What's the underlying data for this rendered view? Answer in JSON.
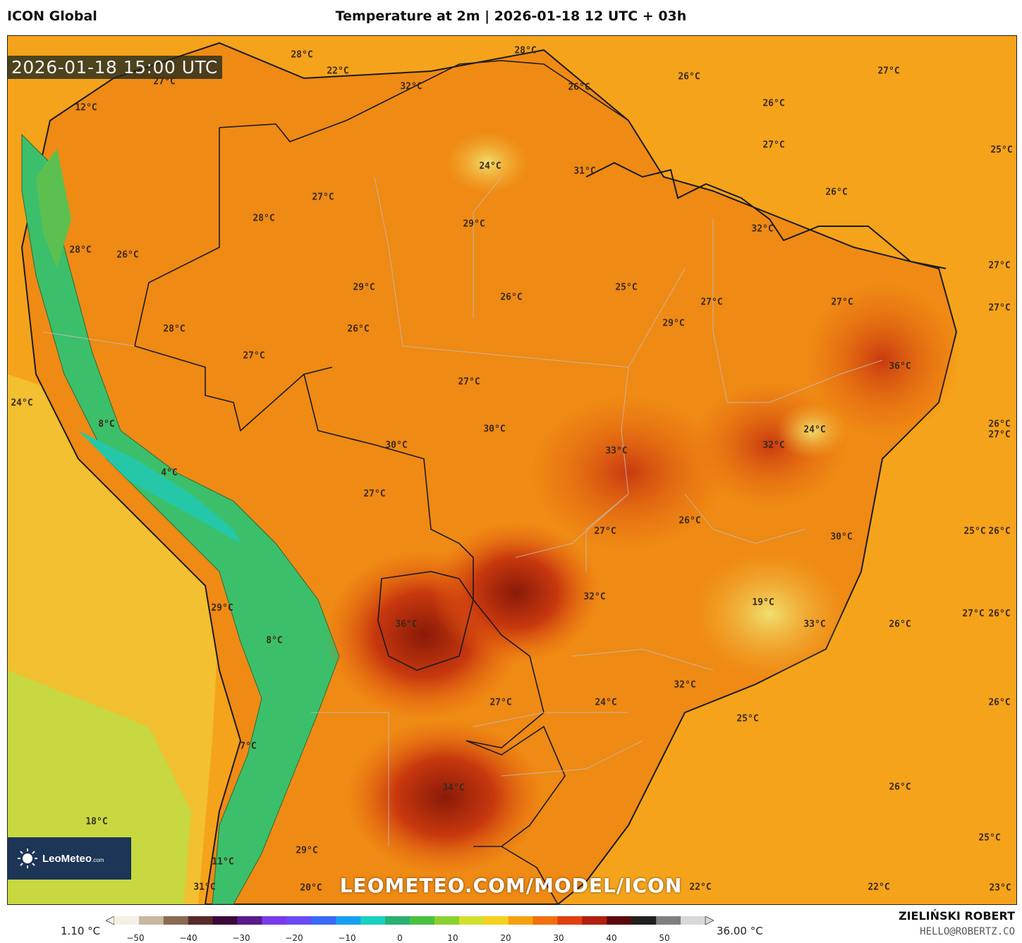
{
  "header": {
    "model": "ICON Global",
    "title": "Temperature at 2m | 2026-01-18 12 UTC + 03h"
  },
  "map": {
    "valid_time": "2026-01-18 15:00 UTC",
    "watermark": "LEOMETEO.COM/MODEL/ICON",
    "logo": {
      "name": "LeoMeteo",
      "suffix": ".com",
      "icon": "sun-icon"
    },
    "labels": [
      {
        "text": "28°C"
      },
      {
        "text": "22°C"
      },
      {
        "text": "27°C"
      },
      {
        "text": "32°C"
      },
      {
        "text": "28°C"
      },
      {
        "text": "26°C"
      },
      {
        "text": "26°C"
      },
      {
        "text": "27°C"
      },
      {
        "text": "12°C"
      },
      {
        "text": "26°C"
      },
      {
        "text": "27°C"
      },
      {
        "text": "24°C"
      },
      {
        "text": "31°C"
      },
      {
        "text": "25°C"
      },
      {
        "text": "27°C"
      },
      {
        "text": "26°C"
      },
      {
        "text": "28°C"
      },
      {
        "text": "29°C"
      },
      {
        "text": "32°C"
      },
      {
        "text": "28°C"
      },
      {
        "text": "26°C"
      },
      {
        "text": "27°C"
      },
      {
        "text": "29°C"
      },
      {
        "text": "26°C"
      },
      {
        "text": "25°C"
      },
      {
        "text": "27°C"
      },
      {
        "text": "27°C"
      },
      {
        "text": "27°C"
      },
      {
        "text": "28°C"
      },
      {
        "text": "26°C"
      },
      {
        "text": "29°C"
      },
      {
        "text": "27°C"
      },
      {
        "text": "36°C"
      },
      {
        "text": "27°C"
      },
      {
        "text": "24°C"
      },
      {
        "text": "30°C"
      },
      {
        "text": "33°C"
      },
      {
        "text": "24°C"
      },
      {
        "text": "32°C"
      },
      {
        "text": "26°C"
      },
      {
        "text": "27°C"
      },
      {
        "text": "8°C"
      },
      {
        "text": "30°C"
      },
      {
        "text": "4°C"
      },
      {
        "text": "27°C"
      },
      {
        "text": "27°C"
      },
      {
        "text": "26°C"
      },
      {
        "text": "25°C"
      },
      {
        "text": "26°C"
      },
      {
        "text": "30°C"
      },
      {
        "text": "32°C"
      },
      {
        "text": "19°C"
      },
      {
        "text": "29°C"
      },
      {
        "text": "36°C"
      },
      {
        "text": "33°C"
      },
      {
        "text": "26°C"
      },
      {
        "text": "27°C"
      },
      {
        "text": "26°C"
      },
      {
        "text": "8°C"
      },
      {
        "text": "32°C"
      },
      {
        "text": "27°C"
      },
      {
        "text": "24°C"
      },
      {
        "text": "26°C"
      },
      {
        "text": "25°C"
      },
      {
        "text": "7°C"
      },
      {
        "text": "34°C"
      },
      {
        "text": "26°C"
      },
      {
        "text": "18°C"
      },
      {
        "text": "25°C"
      },
      {
        "text": "29°C"
      },
      {
        "text": "11°C"
      },
      {
        "text": "31°C"
      },
      {
        "text": "20°C"
      },
      {
        "text": "22°C"
      },
      {
        "text": "22°C"
      },
      {
        "text": "23°C"
      }
    ]
  },
  "legend": {
    "min_label": "1.10 °C",
    "max_label": "36.00 °C",
    "ticks": [
      "−50",
      "−40",
      "−30",
      "−20",
      "−10",
      "0",
      "10",
      "20",
      "30",
      "40",
      "50"
    ],
    "colors": [
      "#f5f0e6",
      "#c8b8a0",
      "#8a6a50",
      "#5a2a2a",
      "#3a0a3a",
      "#5a1a8a",
      "#7a3aea",
      "#6a4af5",
      "#3a6af5",
      "#1aa0f0",
      "#1ad0c0",
      "#2ab070",
      "#4ac040",
      "#8ad030",
      "#d0e030",
      "#f5d020",
      "#f5a010",
      "#f07010",
      "#e04010",
      "#b02010",
      "#5a0a0a",
      "#202020",
      "#808080",
      "#d8d8d8"
    ]
  },
  "credits": {
    "author": "ZIELIŃSKI ROBERT",
    "email": "HELLO@ROBERTZ.CO"
  }
}
